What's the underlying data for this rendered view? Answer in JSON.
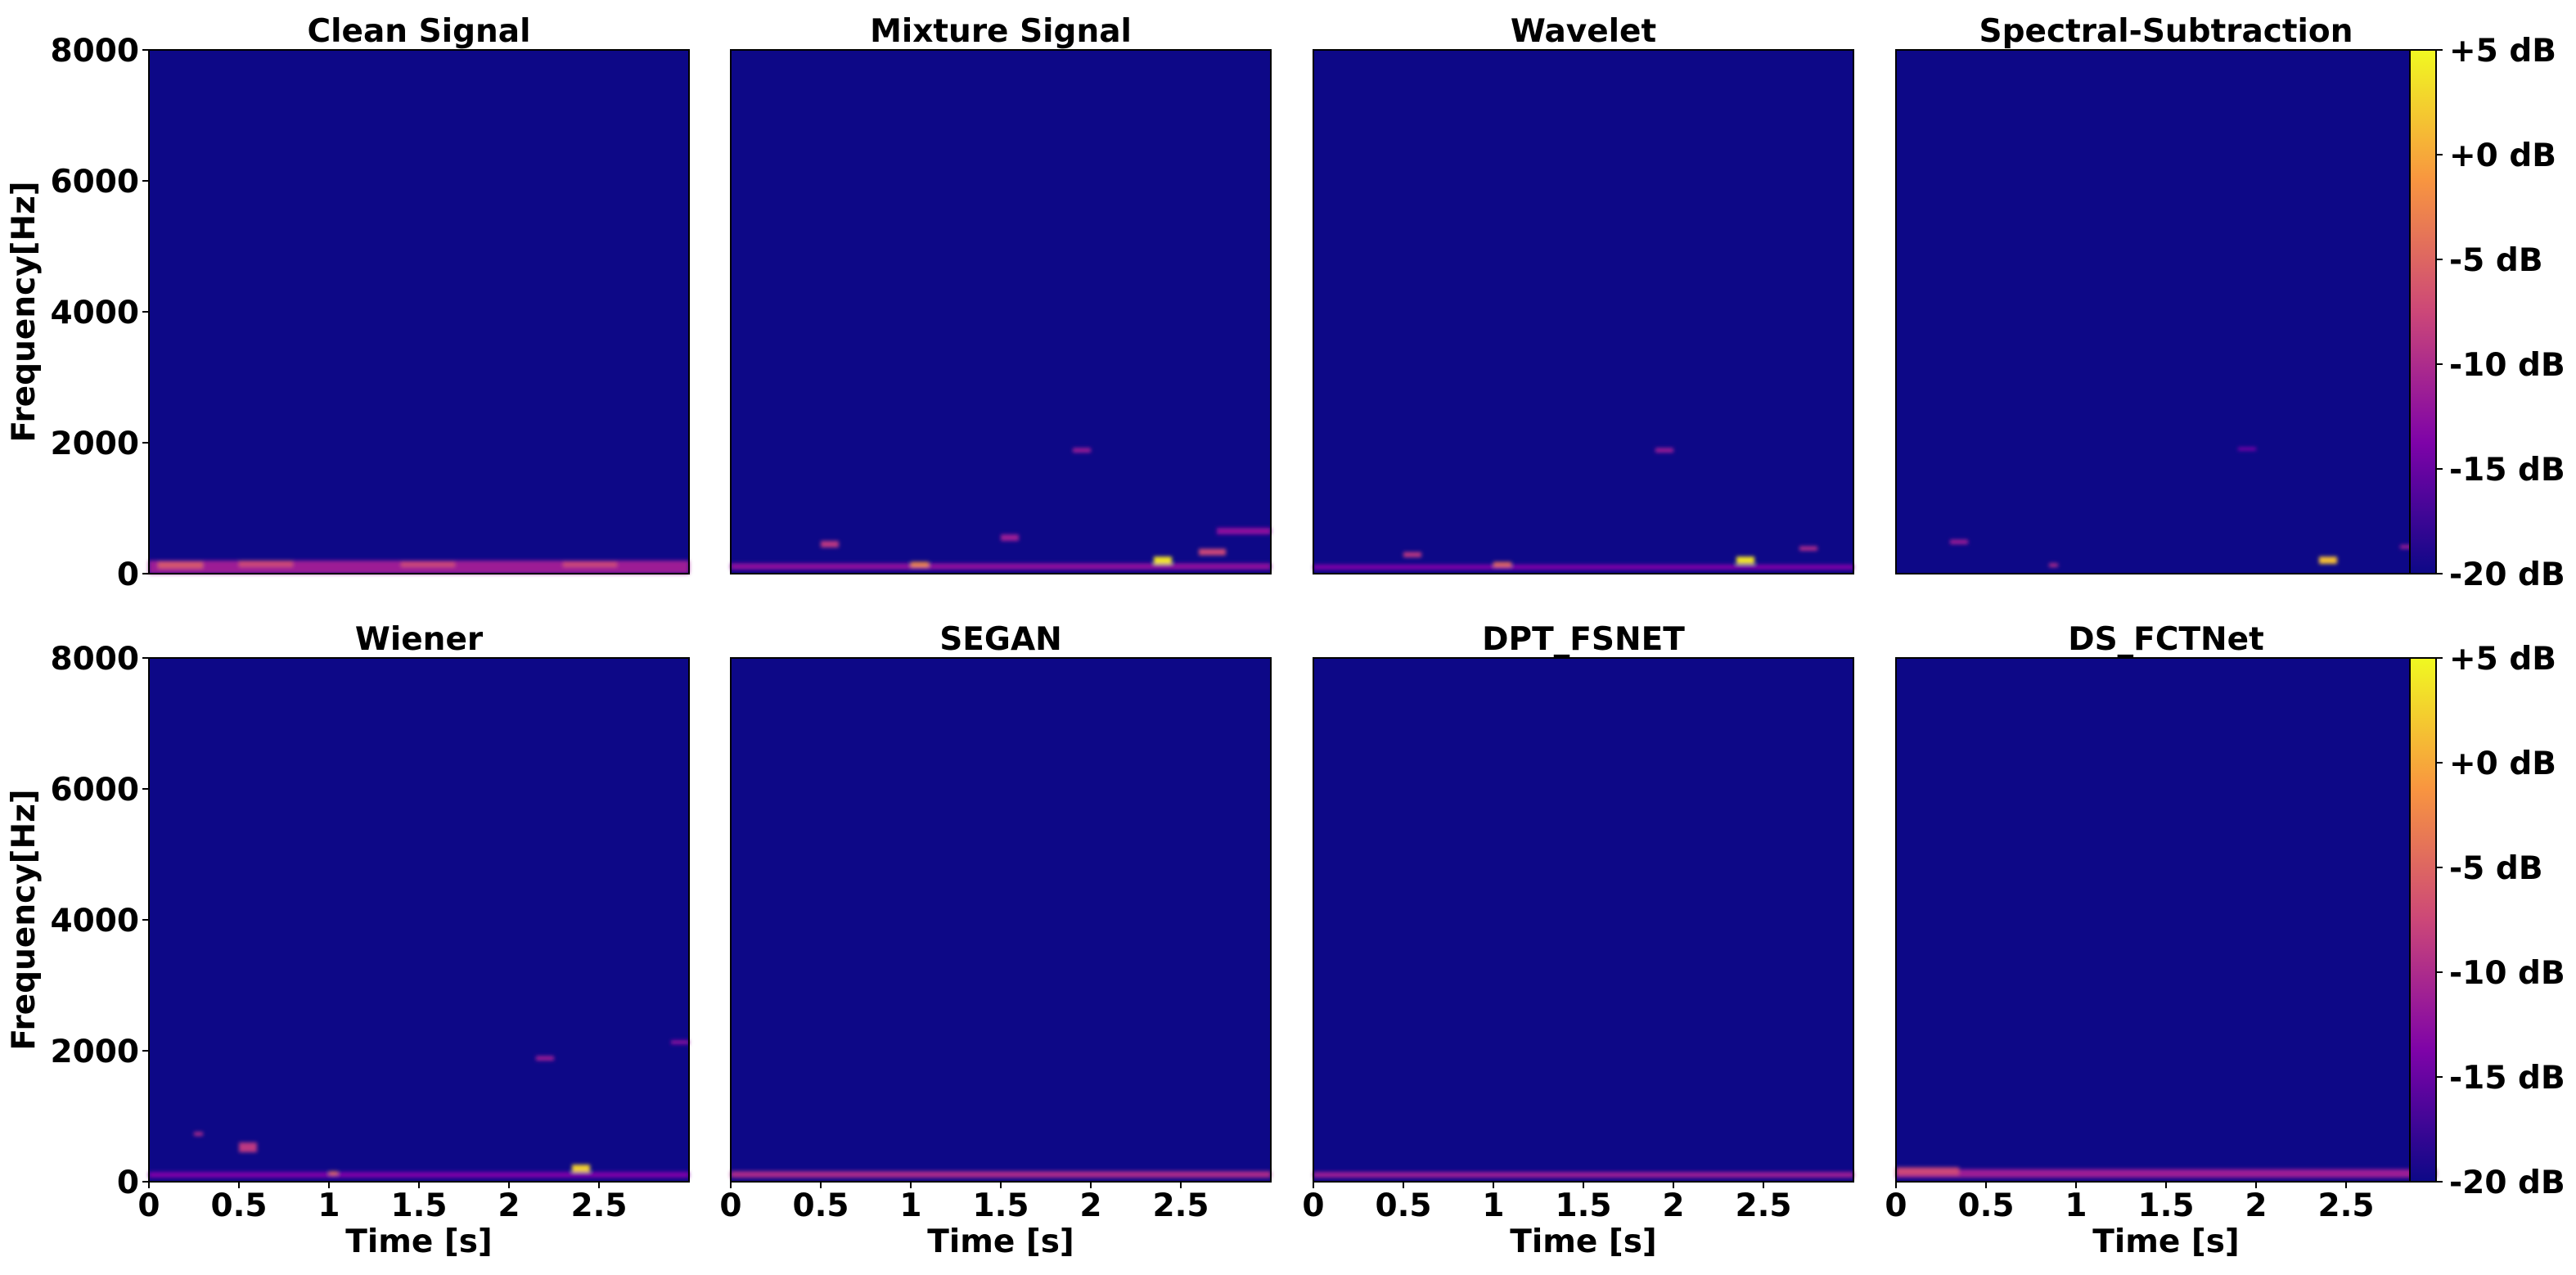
{
  "chart_data": [
    {
      "type": "heatmap",
      "title": "Clean Signal",
      "xlabel": "",
      "ylabel": "Frequency[Hz]",
      "xlim": [
        0,
        3.0
      ],
      "ylim": [
        0,
        8000
      ],
      "xticks": [],
      "yticks": [
        "0",
        "2000",
        "4000",
        "6000",
        "8000"
      ],
      "energy": [
        {
          "t0": 0.0,
          "t1": 3.0,
          "f0": 0,
          "f1": 200,
          "level": 0.35
        },
        {
          "t0": 0.05,
          "t1": 0.3,
          "f0": 80,
          "f1": 180,
          "level": 0.55
        },
        {
          "t0": 0.5,
          "t1": 0.8,
          "f0": 100,
          "f1": 200,
          "level": 0.5
        },
        {
          "t0": 1.4,
          "t1": 1.7,
          "f0": 100,
          "f1": 180,
          "level": 0.5
        },
        {
          "t0": 2.3,
          "t1": 2.6,
          "f0": 100,
          "f1": 180,
          "level": 0.5
        }
      ]
    },
    {
      "type": "heatmap",
      "title": "Mixture Signal",
      "xlabel": "",
      "ylabel": "",
      "xlim": [
        0,
        3.0
      ],
      "ylim": [
        0,
        8000
      ],
      "xticks": [],
      "yticks": [],
      "energy": [
        {
          "t0": 0.0,
          "t1": 3.0,
          "f0": 60,
          "f1": 160,
          "level": 0.3
        },
        {
          "t0": 0.5,
          "t1": 0.6,
          "f0": 400,
          "f1": 500,
          "level": 0.45
        },
        {
          "t0": 1.0,
          "t1": 1.1,
          "f0": 100,
          "f1": 180,
          "level": 0.7
        },
        {
          "t0": 1.5,
          "t1": 1.6,
          "f0": 500,
          "f1": 600,
          "level": 0.35
        },
        {
          "t0": 1.9,
          "t1": 2.0,
          "f0": 1850,
          "f1": 1920,
          "level": 0.35
        },
        {
          "t0": 2.35,
          "t1": 2.45,
          "f0": 150,
          "f1": 260,
          "level": 0.95
        },
        {
          "t0": 2.6,
          "t1": 2.75,
          "f0": 280,
          "f1": 380,
          "level": 0.5
        },
        {
          "t0": 2.7,
          "t1": 3.0,
          "f0": 600,
          "f1": 700,
          "level": 0.3
        }
      ]
    },
    {
      "type": "heatmap",
      "title": "Wavelet",
      "xlabel": "",
      "ylabel": "",
      "xlim": [
        0,
        3.0
      ],
      "ylim": [
        0,
        8000
      ],
      "xticks": [],
      "yticks": [],
      "energy": [
        {
          "t0": 0.0,
          "t1": 3.0,
          "f0": 60,
          "f1": 140,
          "level": 0.25
        },
        {
          "t0": 0.5,
          "t1": 0.6,
          "f0": 250,
          "f1": 330,
          "level": 0.45
        },
        {
          "t0": 1.0,
          "t1": 1.1,
          "f0": 100,
          "f1": 180,
          "level": 0.6
        },
        {
          "t0": 1.9,
          "t1": 2.0,
          "f0": 1850,
          "f1": 1920,
          "level": 0.35
        },
        {
          "t0": 2.35,
          "t1": 2.45,
          "f0": 150,
          "f1": 260,
          "level": 0.95
        },
        {
          "t0": 2.7,
          "t1": 2.8,
          "f0": 350,
          "f1": 420,
          "level": 0.4
        }
      ]
    },
    {
      "type": "heatmap",
      "title": "Spectral-Subtraction",
      "xlabel": "",
      "ylabel": "",
      "xlim": [
        0,
        3.0
      ],
      "ylim": [
        0,
        8000
      ],
      "xticks": [],
      "yticks": [],
      "energy": [
        {
          "t0": 0.3,
          "t1": 0.4,
          "f0": 450,
          "f1": 520,
          "level": 0.35
        },
        {
          "t0": 0.85,
          "t1": 0.9,
          "f0": 100,
          "f1": 160,
          "level": 0.4
        },
        {
          "t0": 1.9,
          "t1": 2.0,
          "f0": 1880,
          "f1": 1930,
          "level": 0.25
        },
        {
          "t0": 2.35,
          "t1": 2.45,
          "f0": 150,
          "f1": 260,
          "level": 0.85
        },
        {
          "t0": 2.8,
          "t1": 2.9,
          "f0": 380,
          "f1": 440,
          "level": 0.35
        }
      ]
    },
    {
      "type": "heatmap",
      "title": "Wiener",
      "xlabel": "Time [s]",
      "ylabel": "Frequency[Hz]",
      "xlim": [
        0,
        3.0
      ],
      "ylim": [
        0,
        8000
      ],
      "xticks": [
        "0",
        "0.5",
        "1",
        "1.5",
        "2",
        "2.5"
      ],
      "yticks": [
        "0",
        "2000",
        "4000",
        "6000",
        "8000"
      ],
      "energy": [
        {
          "t0": 0.0,
          "t1": 3.0,
          "f0": 60,
          "f1": 150,
          "level": 0.25
        },
        {
          "t0": 0.25,
          "t1": 0.3,
          "f0": 700,
          "f1": 760,
          "level": 0.4
        },
        {
          "t0": 0.5,
          "t1": 0.6,
          "f0": 450,
          "f1": 600,
          "level": 0.45
        },
        {
          "t0": 1.0,
          "t1": 1.05,
          "f0": 100,
          "f1": 160,
          "level": 0.6
        },
        {
          "t0": 2.15,
          "t1": 2.25,
          "f0": 1850,
          "f1": 1920,
          "level": 0.35
        },
        {
          "t0": 2.35,
          "t1": 2.45,
          "f0": 150,
          "f1": 260,
          "level": 0.9
        },
        {
          "t0": 2.9,
          "t1": 3.0,
          "f0": 2100,
          "f1": 2160,
          "level": 0.3
        }
      ]
    },
    {
      "type": "heatmap",
      "title": "SEGAN",
      "xlabel": "Time [s]",
      "ylabel": "",
      "xlim": [
        0,
        3.0
      ],
      "ylim": [
        0,
        8000
      ],
      "xticks": [
        "0",
        "0.5",
        "1",
        "1.5",
        "2",
        "2.5"
      ],
      "yticks": [],
      "energy": [
        {
          "t0": 0.0,
          "t1": 3.0,
          "f0": 60,
          "f1": 160,
          "level": 0.4
        }
      ]
    },
    {
      "type": "heatmap",
      "title": "DPT_FSNET",
      "xlabel": "Time [s]",
      "ylabel": "",
      "xlim": [
        0,
        3.0
      ],
      "ylim": [
        0,
        8000
      ],
      "xticks": [
        "0",
        "0.5",
        "1",
        "1.5",
        "2",
        "2.5"
      ],
      "yticks": [],
      "energy": [
        {
          "t0": 0.0,
          "t1": 3.0,
          "f0": 60,
          "f1": 150,
          "level": 0.35
        }
      ]
    },
    {
      "type": "heatmap",
      "title": "DS_FCTNet",
      "xlabel": "Time [s]",
      "ylabel": "",
      "xlim": [
        0,
        3.0
      ],
      "ylim": [
        0,
        8000
      ],
      "xticks": [
        "0",
        "0.5",
        "1",
        "1.5",
        "2",
        "2.5"
      ],
      "yticks": [],
      "energy": [
        {
          "t0": 0.0,
          "t1": 3.0,
          "f0": 60,
          "f1": 190,
          "level": 0.35
        },
        {
          "t0": 0.0,
          "t1": 0.35,
          "f0": 100,
          "f1": 220,
          "level": 0.5
        }
      ]
    }
  ],
  "colorbar": {
    "colormap": "plasma",
    "range_db": [
      -20,
      5
    ],
    "ticks": [
      "+5 dB",
      "+0 dB",
      "-5 dB",
      "-10 dB",
      "-15 dB",
      "-20 dB"
    ]
  },
  "colors": {
    "background": "#0d0887",
    "cmap_stops": [
      "#0d0887",
      "#7e03a8",
      "#cc4778",
      "#f89540",
      "#f0f921"
    ]
  }
}
